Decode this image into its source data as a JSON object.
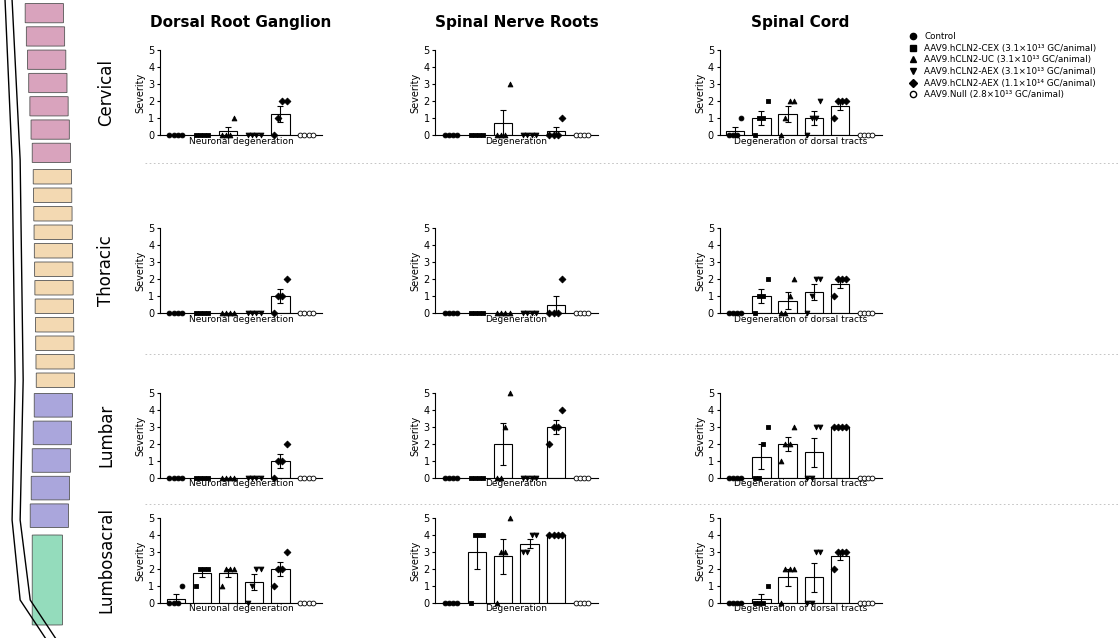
{
  "column_titles": [
    "Dorsal Root Ganglion",
    "Spinal Nerve Roots",
    "Spinal Cord"
  ],
  "row_labels": [
    "Cervical",
    "Thoracic",
    "Lumbar",
    "Lumbosacral"
  ],
  "groups": [
    {
      "name": "Control",
      "marker": "circle"
    },
    {
      "name": "AAV9.hCLN2-CEX (3.1×10¹³ GC/animal)",
      "marker": "square"
    },
    {
      "name": "AAV9.hCLN2-UC (3.1×10¹³ GC/animal)",
      "marker": "triangle_up"
    },
    {
      "name": "AAV9.hCLN2-AEX (3.1×10¹³ GC/animal)",
      "marker": "triangle_down"
    },
    {
      "name": "AAV9.hCLN2-AEX (1.1×10¹⁴ GC/animal)",
      "marker": "diamond"
    },
    {
      "name": "AAV9.Null (2.8×10¹³ GC/animal)",
      "marker": "open_circle"
    }
  ],
  "chart_data": [
    {
      "type": "bar",
      "xlabel": "Neuronal degeneration",
      "ylabel": "Severity",
      "categories": [
        null,
        null,
        null,
        null,
        null,
        null
      ],
      "values": [
        0,
        0,
        0.25,
        0,
        1.25,
        0
      ],
      "error": [
        0,
        0,
        0.25,
        0,
        0.48,
        0
      ],
      "points": [
        [
          0,
          0,
          0,
          0
        ],
        [
          0,
          0,
          0,
          0
        ],
        [
          0,
          0,
          0,
          1
        ],
        [
          0,
          0,
          0,
          0
        ],
        [
          0,
          1,
          2,
          2
        ],
        [
          0,
          0,
          0,
          0
        ]
      ],
      "ylim": [
        0,
        5
      ],
      "yticks": [
        0,
        1,
        2,
        3,
        4,
        5
      ],
      "tick_labels": "y",
      "color": "#ffffff"
    },
    {
      "type": "bar",
      "xlabel": "Degeneration",
      "ylabel": "Severity",
      "categories": [
        null,
        null,
        null,
        null,
        null,
        null
      ],
      "values": [
        0,
        0,
        0.75,
        0,
        0.25,
        0
      ],
      "error": [
        0,
        0,
        0.75,
        0,
        0.25,
        0
      ],
      "points": [
        [
          0,
          0,
          0,
          0
        ],
        [
          0,
          0,
          0,
          0
        ],
        [
          0,
          0,
          0,
          3
        ],
        [
          0,
          0,
          0,
          0
        ],
        [
          0,
          0,
          0,
          1
        ],
        [
          0,
          0,
          0,
          0
        ]
      ],
      "ylim": [
        0,
        5
      ],
      "yticks": [
        0,
        1,
        2,
        3,
        4,
        5
      ],
      "tick_labels": "y",
      "color": "#ffffff"
    },
    {
      "type": "bar",
      "xlabel": "Degeneration of dorsal tracts",
      "ylabel": "Severity",
      "categories": [
        null,
        null,
        null,
        null,
        null,
        null
      ],
      "values": [
        0.25,
        1,
        1.25,
        1,
        1.75,
        0
      ],
      "error": [
        0.25,
        0.41,
        0.48,
        0.41,
        0.25,
        0
      ],
      "points": [
        [
          0,
          0,
          0,
          1
        ],
        [
          0,
          1,
          1,
          2
        ],
        [
          0,
          1,
          2,
          2
        ],
        [
          0,
          1,
          1,
          2
        ],
        [
          1,
          2,
          2,
          2
        ],
        [
          0,
          0,
          0,
          0
        ]
      ],
      "ylim": [
        0,
        5
      ],
      "yticks": [
        0,
        1,
        2,
        3,
        4,
        5
      ],
      "tick_labels": "y",
      "color": "#ffffff"
    },
    {
      "type": "bar",
      "xlabel": "Neuronal degeneration",
      "ylabel": "Severity",
      "categories": [
        null,
        null,
        null,
        null,
        null,
        null
      ],
      "values": [
        0,
        0,
        0,
        0,
        1,
        0
      ],
      "error": [
        0,
        0,
        0,
        0,
        0.41,
        0
      ],
      "points": [
        [
          0,
          0,
          0,
          0
        ],
        [
          0,
          0,
          0,
          0
        ],
        [
          0,
          0,
          0,
          0
        ],
        [
          0,
          0,
          0,
          0
        ],
        [
          0,
          1,
          1,
          2
        ],
        [
          0,
          0,
          0,
          0
        ]
      ],
      "ylim": [
        0,
        5
      ],
      "yticks": [
        0,
        1,
        2,
        3,
        4,
        5
      ],
      "tick_labels": "y",
      "color": "#ffffff"
    },
    {
      "type": "bar",
      "xlabel": "Degeneration",
      "ylabel": "Severity",
      "categories": [
        null,
        null,
        null,
        null,
        null,
        null
      ],
      "values": [
        0,
        0,
        0,
        0,
        0.5,
        0
      ],
      "error": [
        0,
        0,
        0,
        0,
        0.5,
        0
      ],
      "points": [
        [
          0,
          0,
          0,
          0
        ],
        [
          0,
          0,
          0,
          0
        ],
        [
          0,
          0,
          0,
          0
        ],
        [
          0,
          0,
          0,
          0
        ],
        [
          0,
          0,
          0,
          2
        ],
        [
          0,
          0,
          0,
          0
        ]
      ],
      "ylim": [
        0,
        5
      ],
      "yticks": [
        0,
        1,
        2,
        3,
        4,
        5
      ],
      "tick_labels": "y",
      "color": "#ffffff"
    },
    {
      "type": "bar",
      "xlabel": "Degeneration of dorsal tracts",
      "ylabel": "Severity",
      "categories": [
        null,
        null,
        null,
        null,
        null,
        null
      ],
      "values": [
        0,
        1,
        0.75,
        1.25,
        1.75,
        0
      ],
      "error": [
        0,
        0.41,
        0.48,
        0.48,
        0.25,
        0
      ],
      "points": [
        [
          0,
          0,
          0,
          0
        ],
        [
          0,
          1,
          1,
          2
        ],
        [
          0,
          0,
          1,
          2
        ],
        [
          0,
          1,
          2,
          2
        ],
        [
          1,
          2,
          2,
          2
        ],
        [
          0,
          0,
          0,
          0
        ]
      ],
      "ylim": [
        0,
        5
      ],
      "yticks": [
        0,
        1,
        2,
        3,
        4,
        5
      ],
      "tick_labels": "y",
      "color": "#ffffff"
    },
    {
      "type": "bar",
      "xlabel": "Neuronal degeneration",
      "ylabel": "Severity",
      "categories": [
        null,
        null,
        null,
        null,
        null,
        null
      ],
      "values": [
        0,
        0,
        0,
        0,
        1,
        0
      ],
      "error": [
        0,
        0,
        0,
        0,
        0.41,
        0
      ],
      "points": [
        [
          0,
          0,
          0,
          0
        ],
        [
          0,
          0,
          0,
          0
        ],
        [
          0,
          0,
          0,
          0
        ],
        [
          0,
          0,
          0,
          0
        ],
        [
          0,
          1,
          1,
          2
        ],
        [
          0,
          0,
          0,
          0
        ]
      ],
      "ylim": [
        0,
        5
      ],
      "yticks": [
        0,
        1,
        2,
        3,
        4,
        5
      ],
      "tick_labels": "y",
      "color": "#ffffff"
    },
    {
      "type": "bar",
      "xlabel": "Degeneration",
      "ylabel": "Severity",
      "categories": [
        null,
        null,
        null,
        null,
        null,
        null
      ],
      "values": [
        0,
        0,
        2,
        0,
        3,
        0
      ],
      "error": [
        0,
        0,
        1.22,
        0,
        0.41,
        0
      ],
      "points": [
        [
          0,
          0,
          0,
          0
        ],
        [
          0,
          0,
          0,
          0
        ],
        [
          0,
          0,
          3,
          5
        ],
        [
          0,
          0,
          0,
          0
        ],
        [
          2,
          3,
          3,
          4
        ],
        [
          0,
          0,
          0,
          0
        ]
      ],
      "ylim": [
        0,
        5
      ],
      "yticks": [
        0,
        1,
        2,
        3,
        4,
        5
      ],
      "tick_labels": "y",
      "color": "#ffffff"
    },
    {
      "type": "bar",
      "xlabel": "Degeneration of dorsal tracts",
      "ylabel": "Severity",
      "categories": [
        null,
        null,
        null,
        null,
        null,
        null
      ],
      "values": [
        0,
        1.25,
        2,
        1.5,
        3,
        0
      ],
      "error": [
        0,
        0.75,
        0.41,
        0.87,
        0,
        0
      ],
      "points": [
        [
          0,
          0,
          0,
          0
        ],
        [
          0,
          0,
          2,
          3
        ],
        [
          1,
          2,
          2,
          3
        ],
        [
          0,
          0,
          3,
          3
        ],
        [
          3,
          3,
          3,
          3
        ],
        [
          0,
          0,
          0,
          0
        ]
      ],
      "ylim": [
        0,
        5
      ],
      "yticks": [
        0,
        1,
        2,
        3,
        4,
        5
      ],
      "tick_labels": "y",
      "color": "#ffffff"
    },
    {
      "type": "bar",
      "xlabel": "Neuronal degeneration",
      "ylabel": "Severity",
      "categories": [
        null,
        null,
        null,
        null,
        null,
        null
      ],
      "values": [
        0.25,
        1.75,
        1.75,
        1.25,
        2,
        0
      ],
      "error": [
        0.25,
        0.25,
        0.25,
        0.48,
        0.41,
        0
      ],
      "points": [
        [
          0,
          0,
          0,
          1
        ],
        [
          1,
          2,
          2,
          2
        ],
        [
          1,
          2,
          2,
          2
        ],
        [
          0,
          1,
          2,
          2
        ],
        [
          1,
          2,
          2,
          3
        ],
        [
          0,
          0,
          0,
          0
        ]
      ],
      "ylim": [
        0,
        5
      ],
      "yticks": [
        0,
        1,
        2,
        3,
        4,
        5
      ],
      "tick_labels": "y",
      "color": "#ffffff"
    },
    {
      "type": "bar",
      "xlabel": "Degeneration",
      "ylabel": "Severity",
      "categories": [
        null,
        null,
        null,
        null,
        null,
        null
      ],
      "values": [
        0,
        3,
        2.75,
        3.5,
        4,
        0
      ],
      "error": [
        0,
        1,
        1.03,
        0.29,
        0,
        0
      ],
      "points": [
        [
          0,
          0,
          0,
          0
        ],
        [
          0,
          4,
          4,
          4
        ],
        [
          0,
          3,
          3,
          5
        ],
        [
          3,
          3,
          4,
          4
        ],
        [
          4,
          4,
          4,
          4
        ],
        [
          0,
          0,
          0,
          0
        ]
      ],
      "ylim": [
        0,
        5
      ],
      "yticks": [
        0,
        1,
        2,
        3,
        4,
        5
      ],
      "tick_labels": "y",
      "color": "#ffffff"
    },
    {
      "type": "bar",
      "xlabel": "Degeneration of dorsal tracts",
      "ylabel": "Severity",
      "categories": [
        null,
        null,
        null,
        null,
        null,
        null
      ],
      "values": [
        0,
        0.25,
        1.5,
        1.5,
        2.75,
        0
      ],
      "error": [
        0,
        0.25,
        0.5,
        0.87,
        0.25,
        0
      ],
      "points": [
        [
          0,
          0,
          0,
          0
        ],
        [
          0,
          0,
          0,
          1
        ],
        [
          0,
          2,
          2,
          2
        ],
        [
          0,
          0,
          3,
          3
        ],
        [
          2,
          3,
          3,
          3
        ],
        [
          0,
          0,
          0,
          0
        ]
      ],
      "ylim": [
        0,
        5
      ],
      "yticks": [
        0,
        1,
        2,
        3,
        4,
        5
      ],
      "tick_labels": "y",
      "color": "#ffffff"
    }
  ]
}
